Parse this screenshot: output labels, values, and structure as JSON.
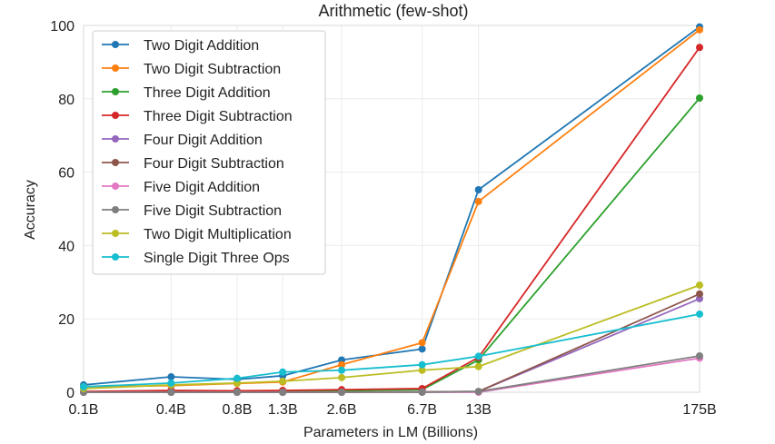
{
  "chart_data": {
    "type": "line",
    "title": "Arithmetic (few-shot)",
    "xlabel": "Parameters in LM (Billions)",
    "ylabel": "Accuracy",
    "x_scale": "log",
    "x_numeric": [
      0.125,
      0.35,
      0.76,
      1.3,
      2.6,
      6.7,
      13,
      175
    ],
    "x_tick_labels": [
      "0.1B",
      "0.4B",
      "0.8B",
      "1.3B",
      "2.6B",
      "6.7B",
      "13B",
      "175B"
    ],
    "ylim": [
      0,
      100
    ],
    "y_ticks": [
      0,
      20,
      40,
      60,
      80,
      100
    ],
    "grid": true,
    "legend_position": "upper-left",
    "series": [
      {
        "name": "Two Digit Addition",
        "color": "#1f77b4",
        "values": [
          2.0,
          4.2,
          3.5,
          4.5,
          8.8,
          11.8,
          55.2,
          99.6
        ]
      },
      {
        "name": "Two Digit Subtraction",
        "color": "#ff7f0e",
        "values": [
          1.5,
          1.8,
          2.4,
          2.8,
          7.5,
          13.5,
          52.0,
          98.8
        ]
      },
      {
        "name": "Three Digit Addition",
        "color": "#2ca02c",
        "values": [
          0.1,
          0.3,
          0.2,
          0.3,
          0.4,
          0.7,
          8.8,
          80.2
        ]
      },
      {
        "name": "Three Digit Subtraction",
        "color": "#d62728",
        "values": [
          0.2,
          0.5,
          0.4,
          0.5,
          0.7,
          1.0,
          9.5,
          94.0
        ]
      },
      {
        "name": "Four Digit Addition",
        "color": "#9467bd",
        "values": [
          0.0,
          0.0,
          0.0,
          0.0,
          0.0,
          0.1,
          0.2,
          25.5
        ]
      },
      {
        "name": "Four Digit Subtraction",
        "color": "#8c564b",
        "values": [
          0.0,
          0.0,
          0.0,
          0.0,
          0.0,
          0.1,
          0.2,
          26.8
        ]
      },
      {
        "name": "Five Digit Addition",
        "color": "#e377c2",
        "values": [
          0.0,
          0.0,
          0.0,
          0.0,
          0.0,
          0.0,
          0.0,
          9.3
        ]
      },
      {
        "name": "Five Digit Subtraction",
        "color": "#7f7f7f",
        "values": [
          0.0,
          0.0,
          0.0,
          0.0,
          0.0,
          0.0,
          0.2,
          9.9
        ]
      },
      {
        "name": "Two Digit Multiplication",
        "color": "#bcbd22",
        "values": [
          1.0,
          2.0,
          2.5,
          3.0,
          4.0,
          6.0,
          7.0,
          29.2
        ]
      },
      {
        "name": "Single Digit Three Ops",
        "color": "#17becf",
        "values": [
          1.5,
          2.5,
          3.8,
          5.5,
          6.0,
          7.5,
          9.8,
          21.3
        ]
      }
    ]
  }
}
